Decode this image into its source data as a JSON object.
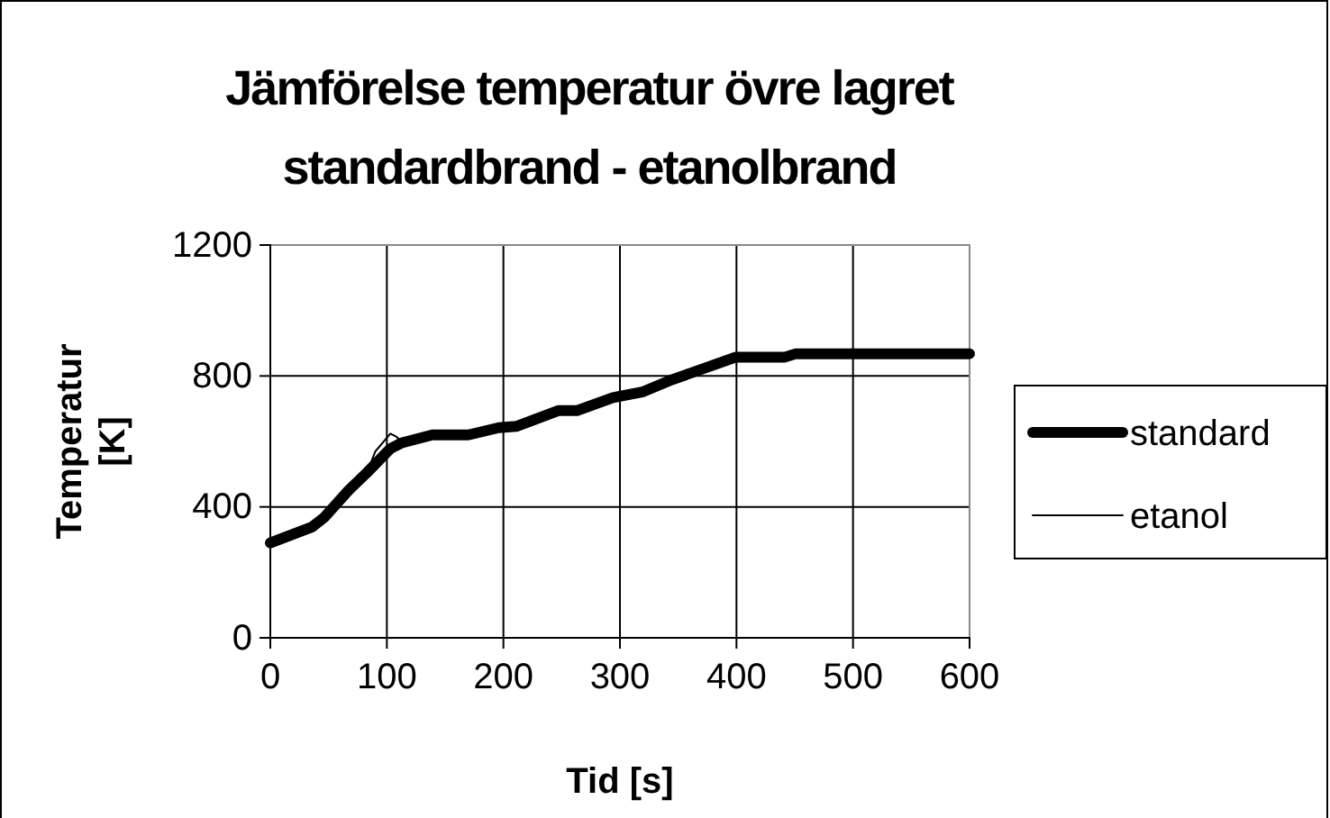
{
  "chart_data": {
    "type": "line",
    "title": "Jämförelse temperatur övre lagret standardbrand - etanolbrand",
    "xlabel": "Tid [s]",
    "ylabel": "Temperatur [K]",
    "xlim": [
      0,
      600
    ],
    "xticks": [
      0,
      100,
      200,
      300,
      400,
      500,
      600
    ],
    "ylim": [
      0,
      1200
    ],
    "yticks": [
      0,
      400,
      800,
      1200
    ],
    "grid": true,
    "legend": "right",
    "marker": "none",
    "series": [
      {
        "name": "standard",
        "color": "#000000",
        "x": [
          0,
          36,
          46,
          67,
          83,
          103,
          113,
          139,
          170,
          196,
          211,
          247,
          263,
          294,
          320,
          345,
          399,
          441,
          451,
          600
        ],
        "values": [
          290,
          339,
          367,
          450,
          505,
          578,
          596,
          620,
          620,
          642,
          646,
          694,
          694,
          734,
          752,
          789,
          857,
          857,
          868,
          868
        ]
      },
      {
        "name": "etanol",
        "color": "#000000",
        "x": [
          83,
          90,
          103,
          108,
          113
        ],
        "values": [
          505,
          569,
          624,
          615,
          596
        ]
      }
    ]
  }
}
